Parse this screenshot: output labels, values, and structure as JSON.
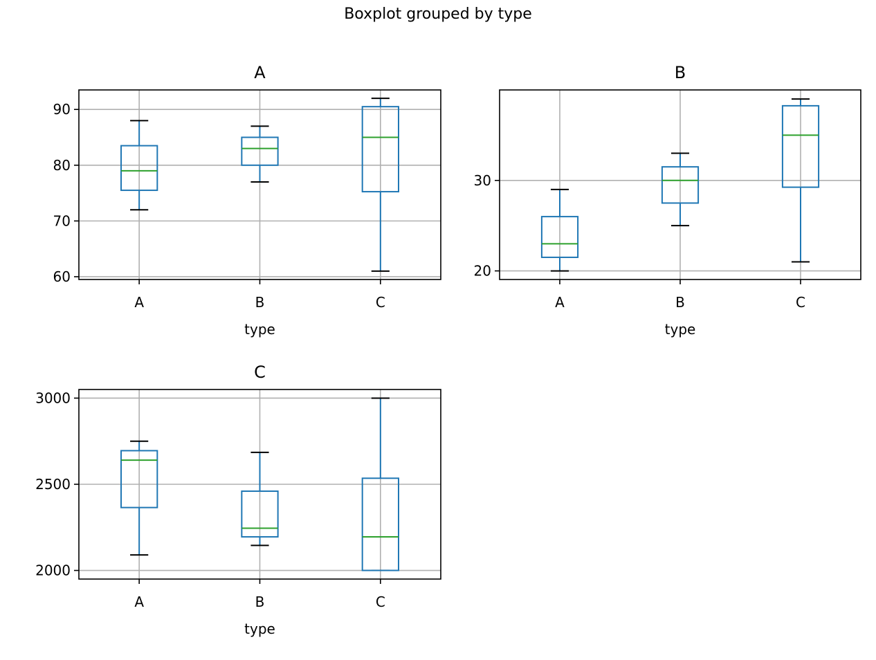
{
  "suptitle": "Boxplot grouped by type",
  "colors": {
    "box": "#1f77b4",
    "median": "#2ca02c",
    "caps": "#000000",
    "grid": "#b0b0b0",
    "axes": "#000000"
  },
  "chart_data": [
    {
      "type": "boxplot",
      "title": "A",
      "xlabel": "type",
      "ylabel": "",
      "categories": [
        "A",
        "B",
        "C"
      ],
      "ylim": [
        59.5,
        93.5
      ],
      "yticks": [
        60,
        70,
        80,
        90
      ],
      "grid": true,
      "boxes": [
        {
          "whislo": 72,
          "q1": 75.5,
          "med": 79,
          "q3": 83.5,
          "whishi": 88
        },
        {
          "whislo": 77,
          "q1": 80,
          "med": 83,
          "q3": 85,
          "whishi": 87
        },
        {
          "whislo": 61,
          "q1": 75.25,
          "med": 85,
          "q3": 90.5,
          "whishi": 92
        }
      ]
    },
    {
      "type": "boxplot",
      "title": "B",
      "xlabel": "type",
      "ylabel": "",
      "categories": [
        "A",
        "B",
        "C"
      ],
      "ylim": [
        19.05,
        40.0
      ],
      "yticks": [
        20,
        30
      ],
      "grid": true,
      "boxes": [
        {
          "whislo": 20,
          "q1": 21.5,
          "med": 23,
          "q3": 26,
          "whishi": 29
        },
        {
          "whislo": 25,
          "q1": 27.5,
          "med": 30,
          "q3": 31.5,
          "whishi": 33
        },
        {
          "whislo": 21,
          "q1": 29.25,
          "med": 35,
          "q3": 38.25,
          "whishi": 39
        }
      ]
    },
    {
      "type": "boxplot",
      "title": "C",
      "xlabel": "type",
      "ylabel": "",
      "categories": [
        "A",
        "B",
        "C"
      ],
      "ylim": [
        1950,
        3050
      ],
      "yticks": [
        2000,
        2500,
        3000
      ],
      "grid": true,
      "boxes": [
        {
          "whislo": 2090,
          "q1": 2365,
          "med": 2640,
          "q3": 2695,
          "whishi": 2750
        },
        {
          "whislo": 2145,
          "q1": 2195,
          "med": 2245,
          "q3": 2460,
          "whishi": 2685
        },
        {
          "whislo": 2000,
          "q1": 2000,
          "med": 2195,
          "q3": 2535,
          "whishi": 3000
        }
      ]
    }
  ]
}
